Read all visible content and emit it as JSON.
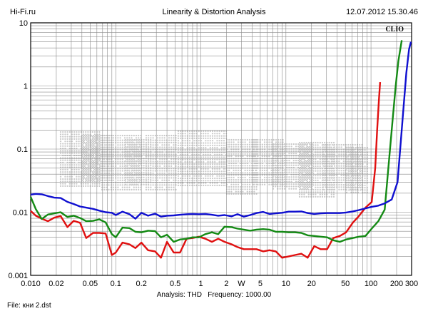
{
  "header": {
    "left": "Hi-Fi.ru",
    "center": "Linearity & Distortion Analysis",
    "right": "12.07.2012 15.30.46"
  },
  "footer": {
    "analysis_label": "Analysis: THD",
    "frequency_label": "Frequency: 1000.00",
    "file": "File: кни 2.dst"
  },
  "logo_text": "CLIO",
  "colors": {
    "grid": "#8a8a8a",
    "red": "#e01010",
    "green": "#148a14",
    "blue": "#1010d0",
    "watermark": "#c8c8c8"
  },
  "chart_data": {
    "type": "line",
    "title": "Linearity & Distortion Analysis",
    "xlabel": "",
    "ylabel": "",
    "x_scale": "log",
    "y_scale": "log",
    "xlim": [
      0.01,
      300
    ],
    "ylim": [
      0.001,
      10
    ],
    "grid": true,
    "x_ticks": [
      {
        "v": 0.01,
        "label": "0.010"
      },
      {
        "v": 0.02,
        "label": "0.02"
      },
      {
        "v": 0.05,
        "label": "0.05"
      },
      {
        "v": 0.1,
        "label": "0.1"
      },
      {
        "v": 0.2,
        "label": "0.2"
      },
      {
        "v": 0.5,
        "label": "0.5"
      },
      {
        "v": 1,
        "label": "1"
      },
      {
        "v": 2,
        "label": "2"
      },
      {
        "v": 3,
        "label": "W"
      },
      {
        "v": 5,
        "label": "5"
      },
      {
        "v": 10,
        "label": "10"
      },
      {
        "v": 20,
        "label": "20"
      },
      {
        "v": 50,
        "label": "50"
      },
      {
        "v": 100,
        "label": "100"
      },
      {
        "v": 200,
        "label": "200"
      },
      {
        "v": 300,
        "label": "300"
      }
    ],
    "y_ticks": [
      {
        "v": 10,
        "label": "10"
      },
      {
        "v": 1,
        "label": "1"
      },
      {
        "v": 0.1,
        "label": "0.1"
      },
      {
        "v": 0.01,
        "label": "0.01"
      },
      {
        "v": 0.001,
        "label": "0.001"
      }
    ],
    "series": [
      {
        "color": "red",
        "x": [
          0.01,
          0.0115,
          0.0135,
          0.016,
          0.019,
          0.0225,
          0.027,
          0.032,
          0.038,
          0.045,
          0.054,
          0.064,
          0.076,
          0.09,
          0.1,
          0.12,
          0.145,
          0.17,
          0.2,
          0.24,
          0.29,
          0.34,
          0.4,
          0.48,
          0.57,
          0.68,
          0.8,
          0.95,
          1.13,
          1.35,
          1.6,
          1.9,
          2.3,
          2.7,
          3.2,
          3.8,
          4.5,
          5.4,
          6.4,
          7.6,
          9,
          10.8,
          12.8,
          15.2,
          18,
          21.5,
          25.6,
          30.5,
          36,
          43,
          51,
          61,
          72,
          86,
          102,
          112,
          118,
          124,
          128
        ],
        "values": [
          0.0105,
          0.0088,
          0.0079,
          0.0072,
          0.0082,
          0.0087,
          0.0058,
          0.0073,
          0.0068,
          0.0039,
          0.0047,
          0.0047,
          0.0046,
          0.0021,
          0.0023,
          0.0033,
          0.0031,
          0.0027,
          0.0033,
          0.0025,
          0.0024,
          0.0019,
          0.0034,
          0.0023,
          0.0023,
          0.0038,
          0.0039,
          0.0041,
          0.0038,
          0.0034,
          0.0038,
          0.0034,
          0.0031,
          0.0028,
          0.0026,
          0.0026,
          0.0026,
          0.0024,
          0.0025,
          0.0024,
          0.0019,
          0.002,
          0.0021,
          0.0022,
          0.0019,
          0.0029,
          0.0026,
          0.0026,
          0.0039,
          0.0042,
          0.0048,
          0.0068,
          0.0087,
          0.0118,
          0.0145,
          0.05,
          0.2,
          0.6,
          1.15
        ]
      },
      {
        "color": "green",
        "x": [
          0.01,
          0.0115,
          0.0135,
          0.016,
          0.019,
          0.0225,
          0.027,
          0.032,
          0.038,
          0.045,
          0.054,
          0.064,
          0.076,
          0.09,
          0.1,
          0.12,
          0.145,
          0.17,
          0.2,
          0.24,
          0.29,
          0.34,
          0.4,
          0.48,
          0.57,
          0.68,
          0.8,
          0.95,
          1.13,
          1.35,
          1.6,
          1.9,
          2.3,
          2.7,
          3.2,
          3.8,
          4.5,
          5.4,
          6.4,
          7.6,
          9,
          10.8,
          12.8,
          15.2,
          18,
          21.5,
          25.6,
          30.5,
          36,
          43,
          51,
          61,
          72,
          86,
          102,
          122,
          145,
          165,
          180,
          195,
          210,
          230
        ],
        "values": [
          0.0175,
          0.0112,
          0.0078,
          0.0092,
          0.0096,
          0.01,
          0.0084,
          0.0088,
          0.0081,
          0.0072,
          0.0073,
          0.0077,
          0.0069,
          0.0045,
          0.004,
          0.0057,
          0.0056,
          0.0049,
          0.0048,
          0.0051,
          0.005,
          0.004,
          0.0044,
          0.0034,
          0.0037,
          0.0038,
          0.004,
          0.004,
          0.0045,
          0.0048,
          0.0045,
          0.0059,
          0.0058,
          0.0055,
          0.0053,
          0.0051,
          0.0053,
          0.0054,
          0.0053,
          0.0049,
          0.0049,
          0.0048,
          0.0048,
          0.0047,
          0.0043,
          0.0042,
          0.0041,
          0.004,
          0.0036,
          0.0034,
          0.0037,
          0.0039,
          0.0041,
          0.0042,
          0.0055,
          0.0072,
          0.011,
          0.08,
          0.3,
          1.0,
          2.5,
          5.3
        ]
      },
      {
        "color": "blue",
        "x": [
          0.01,
          0.0115,
          0.0135,
          0.016,
          0.019,
          0.0225,
          0.027,
          0.032,
          0.038,
          0.045,
          0.054,
          0.064,
          0.076,
          0.09,
          0.1,
          0.12,
          0.145,
          0.17,
          0.2,
          0.24,
          0.29,
          0.34,
          0.4,
          0.48,
          0.57,
          0.68,
          0.8,
          0.95,
          1.13,
          1.35,
          1.6,
          1.9,
          2.3,
          2.7,
          3.2,
          3.8,
          4.5,
          5.4,
          6.4,
          7.6,
          9,
          10.8,
          12.8,
          15.2,
          18,
          21.5,
          25.6,
          30.5,
          36,
          43,
          51,
          61,
          72,
          86,
          102,
          122,
          145,
          175,
          205,
          235,
          260,
          280,
          295
        ],
        "values": [
          0.019,
          0.0195,
          0.0192,
          0.018,
          0.017,
          0.0168,
          0.0146,
          0.0135,
          0.0123,
          0.0118,
          0.0113,
          0.0106,
          0.01,
          0.0098,
          0.009,
          0.0102,
          0.0093,
          0.0079,
          0.0098,
          0.0088,
          0.0095,
          0.0085,
          0.0088,
          0.0089,
          0.0091,
          0.0093,
          0.0094,
          0.0093,
          0.0094,
          0.0091,
          0.0088,
          0.009,
          0.0086,
          0.0093,
          0.0085,
          0.009,
          0.0097,
          0.0101,
          0.0094,
          0.0096,
          0.0098,
          0.0102,
          0.0102,
          0.0103,
          0.0097,
          0.0094,
          0.0096,
          0.0097,
          0.0097,
          0.0097,
          0.0099,
          0.0103,
          0.0108,
          0.0115,
          0.0122,
          0.0127,
          0.0138,
          0.0159,
          0.03,
          0.3,
          1.6,
          3.8,
          5.0
        ]
      }
    ]
  }
}
